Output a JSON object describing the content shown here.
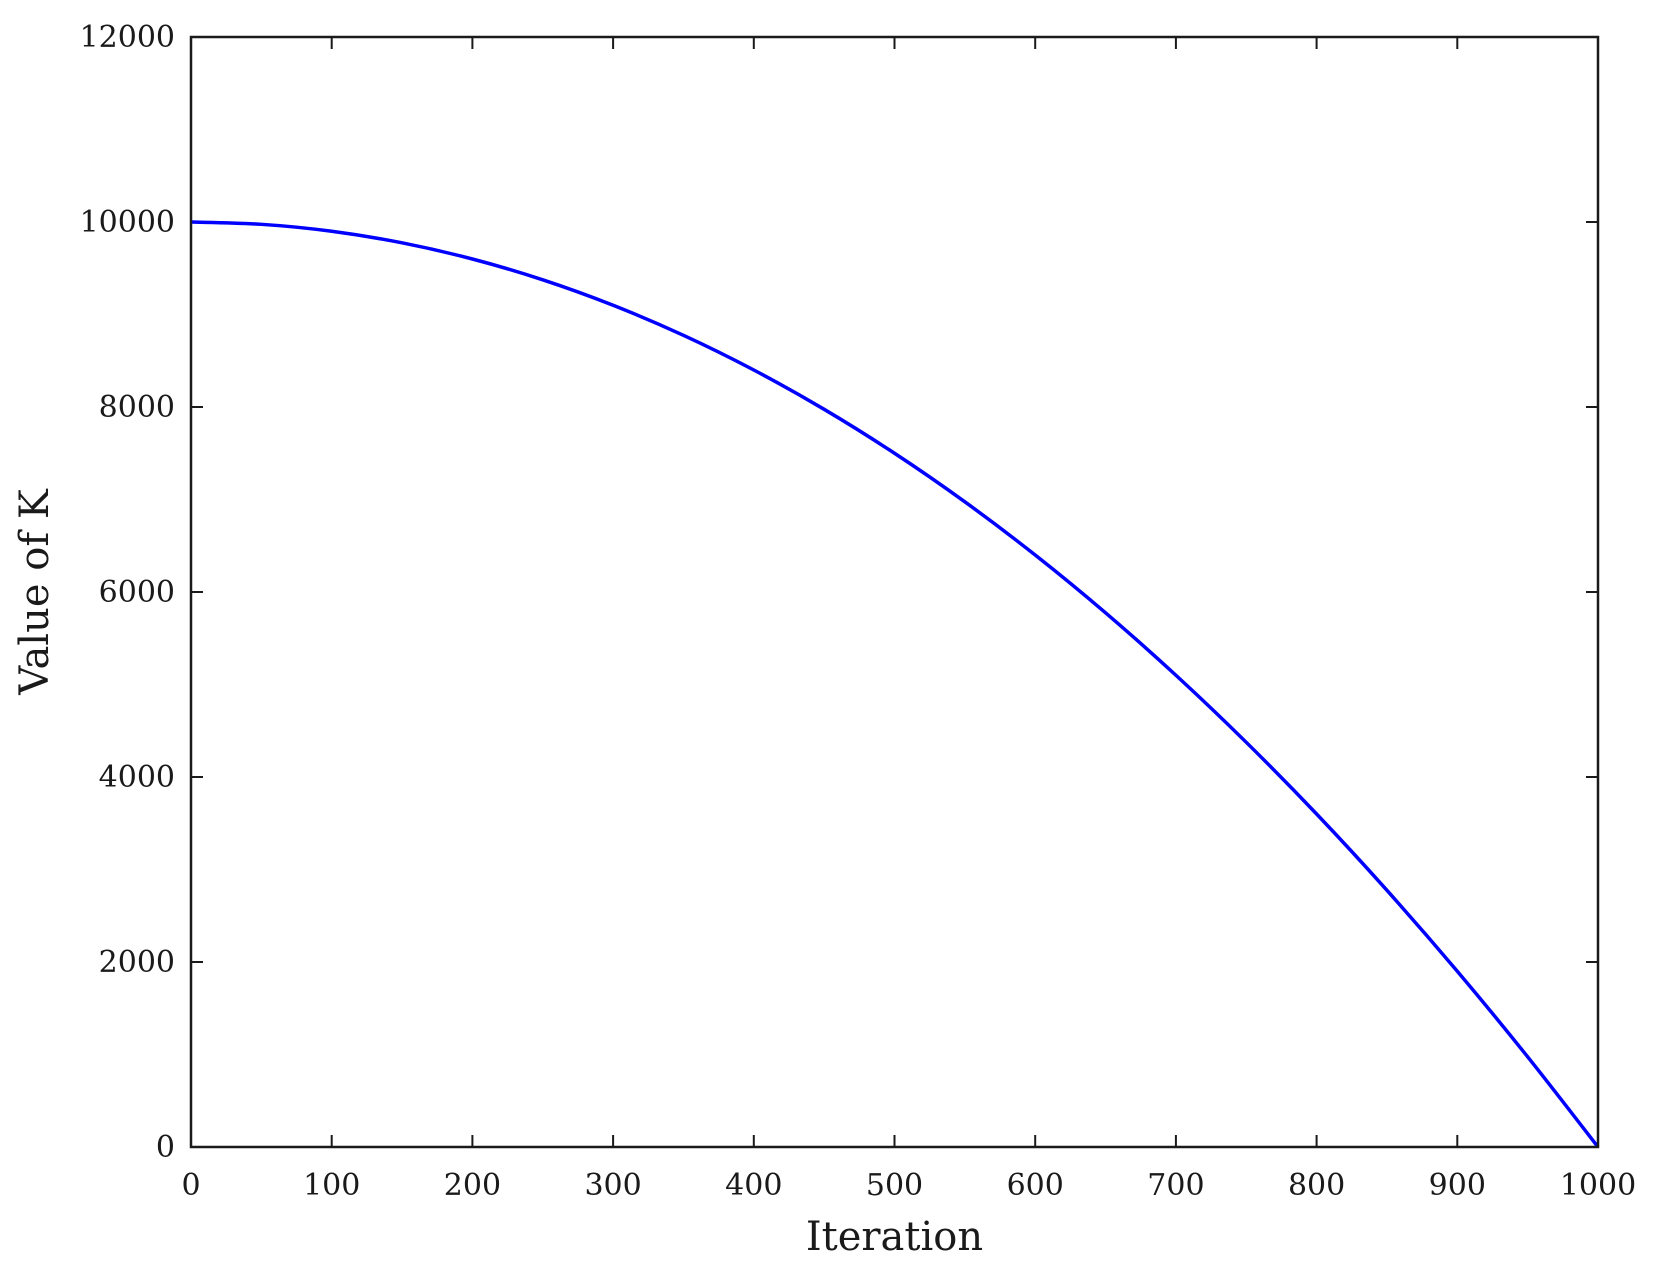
{
  "chart_data": {
    "type": "line",
    "title": "",
    "xlabel": "Iteration",
    "ylabel": "Value of K",
    "xlim": [
      0,
      1000
    ],
    "ylim": [
      0,
      12000
    ],
    "x_ticks": [
      "0",
      "100",
      "200",
      "300",
      "400",
      "500",
      "600",
      "700",
      "800",
      "900",
      "1000"
    ],
    "y_ticks": [
      "0",
      "2000",
      "4000",
      "6000",
      "8000",
      "10000",
      "12000"
    ],
    "grid": false,
    "legend": "none",
    "series": [
      {
        "color": "#0000ff",
        "x": [
          0,
          50,
          100,
          150,
          200,
          250,
          300,
          350,
          400,
          450,
          500,
          550,
          600,
          650,
          700,
          750,
          800,
          850,
          900,
          950,
          1000
        ],
        "y": [
          10000,
          9975,
          9900,
          9775,
          9600,
          9375,
          9100,
          8775,
          8400,
          7975,
          7500,
          6975,
          6400,
          5775,
          5100,
          4375,
          3600,
          2775,
          1900,
          975,
          0
        ]
      }
    ]
  }
}
